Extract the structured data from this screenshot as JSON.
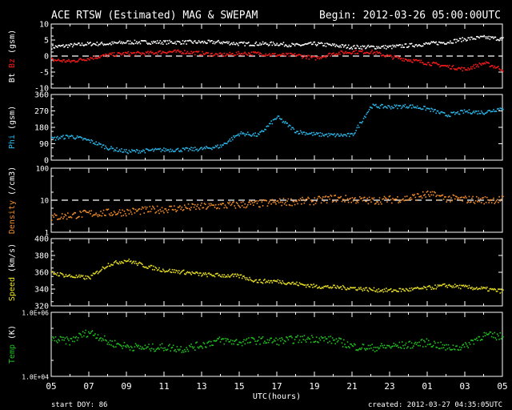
{
  "header": {
    "title": "ACE RTSW (Estimated) MAG & SWEPAM",
    "begin": "Begin: 2012-03-26 05:00:00UTC"
  },
  "footer": {
    "start_doy": "start DOY:  86",
    "created": "created: 2012-03-27 04:35:05UTC"
  },
  "colors": {
    "bt": "#ffffff",
    "bz": "#ff1a1a",
    "phi": "#29b6e8",
    "density": "#f28c28",
    "speed": "#e8e020",
    "temp": "#1fc21f",
    "axis": "#ffffff",
    "background": "#000000"
  },
  "chart_data": [
    {
      "type": "scatter",
      "ylabel_parts": [
        "Bt",
        "Bz",
        "(gsm)"
      ],
      "ylim": [
        -10,
        10
      ],
      "yticks": [
        "10",
        "5",
        "0",
        "-5",
        "-10"
      ],
      "ref_line": 0,
      "x": [
        0,
        1,
        2,
        3,
        4,
        5,
        6,
        7,
        8,
        9,
        10,
        11,
        12,
        13,
        14,
        15,
        16,
        17,
        18,
        19,
        20,
        21,
        22,
        23,
        24
      ],
      "series": [
        {
          "name": "Bt",
          "color_key": "bt",
          "values": [
            3,
            3.5,
            4,
            4,
            4.5,
            4.5,
            4.5,
            4.5,
            4.5,
            4.5,
            4,
            4,
            4,
            3.5,
            4,
            3.5,
            3,
            3,
            3,
            3.5,
            4,
            4.5,
            5.5,
            6,
            5.5
          ]
        },
        {
          "name": "Bz",
          "color_key": "bz",
          "values": [
            -1,
            -1.5,
            -0.5,
            0.5,
            1,
            1,
            1.5,
            1.5,
            1,
            0.5,
            1,
            1,
            0.5,
            0.5,
            -0.5,
            1,
            1.5,
            1.5,
            0,
            -1,
            -2,
            -3,
            -4,
            -2,
            -4
          ]
        }
      ]
    },
    {
      "type": "scatter",
      "ylabel_parts": [
        "Phi",
        "(gsm)"
      ],
      "ylim": [
        0,
        360
      ],
      "yticks": [
        "360",
        "270",
        "180",
        "90",
        "0"
      ],
      "x": [
        0,
        1,
        2,
        3,
        4,
        5,
        6,
        7,
        8,
        9,
        10,
        11,
        12,
        13,
        14,
        15,
        16,
        17,
        18,
        19,
        20,
        21,
        22,
        23,
        24
      ],
      "series": [
        {
          "name": "Phi",
          "color_key": "phi",
          "values": [
            120,
            135,
            110,
            70,
            50,
            55,
            60,
            60,
            65,
            80,
            150,
            140,
            240,
            160,
            145,
            140,
            140,
            300,
            295,
            300,
            285,
            250,
            270,
            265,
            290
          ]
        }
      ]
    },
    {
      "type": "scatter",
      "ylabel_parts": [
        "Density",
        "(/cm3)"
      ],
      "ylim": [
        1,
        100
      ],
      "yscale": "log",
      "yticks": [
        "100",
        "10",
        "1"
      ],
      "ref_line": 10,
      "x": [
        0,
        1,
        2,
        3,
        4,
        5,
        6,
        7,
        8,
        9,
        10,
        11,
        12,
        13,
        14,
        15,
        16,
        17,
        18,
        19,
        20,
        21,
        22,
        23,
        24
      ],
      "series": [
        {
          "name": "Density",
          "color_key": "density",
          "values": [
            3,
            3.5,
            4,
            4.2,
            4.5,
            5,
            5.5,
            6,
            6.5,
            7,
            7.5,
            8,
            9,
            9.5,
            10,
            12,
            11,
            10,
            11,
            12,
            16,
            12,
            11,
            10.5,
            11
          ]
        }
      ]
    },
    {
      "type": "scatter",
      "ylabel_parts": [
        "Speed",
        "(km/s)"
      ],
      "ylim": [
        320,
        400
      ],
      "yticks": [
        "400",
        "380",
        "360",
        "340",
        "320"
      ],
      "x": [
        0,
        1,
        2,
        3,
        4,
        5,
        6,
        7,
        8,
        9,
        10,
        11,
        12,
        13,
        14,
        15,
        16,
        17,
        18,
        19,
        20,
        21,
        22,
        23,
        24
      ],
      "series": [
        {
          "name": "Speed",
          "color_key": "speed",
          "values": [
            360,
            356,
            354,
            370,
            375,
            368,
            363,
            361,
            358,
            357,
            356,
            350,
            350,
            347,
            344,
            343,
            342,
            340,
            339,
            340,
            342,
            345,
            343,
            341,
            338
          ]
        }
      ]
    },
    {
      "type": "scatter",
      "ylabel_parts": [
        "Temp",
        "(K)"
      ],
      "ylim": [
        10000,
        1000000
      ],
      "yscale": "log",
      "yticks": [
        "1.0E+06",
        "1.0E+04"
      ],
      "x": [
        0,
        1,
        2,
        3,
        4,
        5,
        6,
        7,
        8,
        9,
        10,
        11,
        12,
        13,
        14,
        15,
        16,
        17,
        18,
        19,
        20,
        21,
        22,
        23,
        24
      ],
      "series": [
        {
          "name": "Temp",
          "color_key": "temp",
          "values": [
            150000,
            130000,
            250000,
            120000,
            90000,
            80000,
            85000,
            75000,
            100000,
            140000,
            120000,
            140000,
            130000,
            150000,
            160000,
            140000,
            90000,
            80000,
            90000,
            100000,
            120000,
            80000,
            90000,
            200000,
            180000
          ]
        }
      ]
    }
  ],
  "x_axis": {
    "label": "UTC(hours)",
    "ticks": [
      "05",
      "07",
      "09",
      "11",
      "13",
      "15",
      "17",
      "19",
      "21",
      "23",
      "01",
      "03",
      "05"
    ]
  }
}
